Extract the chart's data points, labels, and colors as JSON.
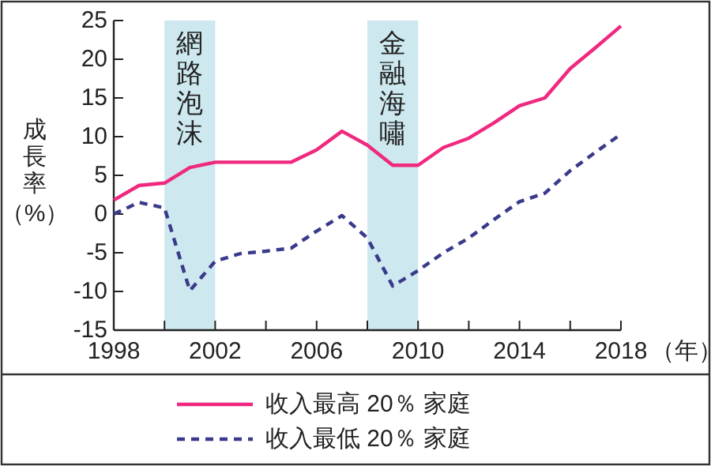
{
  "chart_data": {
    "type": "line",
    "ylabel": "成長率（%）",
    "xlabel": "（年）",
    "x": [
      1998,
      1999,
      2000,
      2001,
      2002,
      2003,
      2004,
      2005,
      2006,
      2007,
      2008,
      2009,
      2010,
      2011,
      2012,
      2013,
      2014,
      2015,
      2016,
      2017,
      2018
    ],
    "series": [
      {
        "name": "收入最高 20％ 家庭",
        "color": "#f0287f",
        "line_style": "solid",
        "values": [
          1.8,
          3.7,
          4.0,
          6.0,
          6.7,
          6.7,
          6.7,
          6.7,
          8.3,
          10.7,
          8.9,
          6.3,
          6.3,
          8.6,
          9.8,
          11.8,
          14.0,
          15.0,
          18.8,
          21.5,
          24.3
        ]
      },
      {
        "name": "收入最低 20％ 家庭",
        "color": "#3a3a8c",
        "line_style": "dashed",
        "values": [
          0,
          1.5,
          0.8,
          -9.9,
          -6.1,
          -5.1,
          -4.8,
          -4.4,
          -2.2,
          -0.2,
          -3.1,
          -9.3,
          -7.3,
          -5.0,
          -3.1,
          -0.7,
          1.6,
          2.7,
          5.6,
          8.0,
          10.3
        ]
      }
    ],
    "xlim": [
      1998,
      2018
    ],
    "xticks": [
      1998,
      {
        "value": 2000,
        "label": null
      },
      2002,
      {
        "value": 2004,
        "label": null
      },
      2006,
      {
        "value": 2008,
        "label": null
      },
      2010,
      {
        "value": 2012,
        "label": null
      },
      2014,
      {
        "value": 2016,
        "label": null
      },
      2018
    ],
    "ylim": [
      -15,
      25
    ],
    "yticks": [
      -15,
      -10,
      -5,
      0,
      5,
      10,
      15,
      20,
      25
    ],
    "bands": [
      {
        "axis": "x",
        "from": 2000,
        "to": 2002,
        "label": "網路泡沫",
        "color": "#cde8ee"
      },
      {
        "axis": "x",
        "from": 2008,
        "to": 2010,
        "label": "金融海嘯",
        "color": "#cde8ee"
      }
    ],
    "grid": false,
    "legend": "bottom"
  }
}
